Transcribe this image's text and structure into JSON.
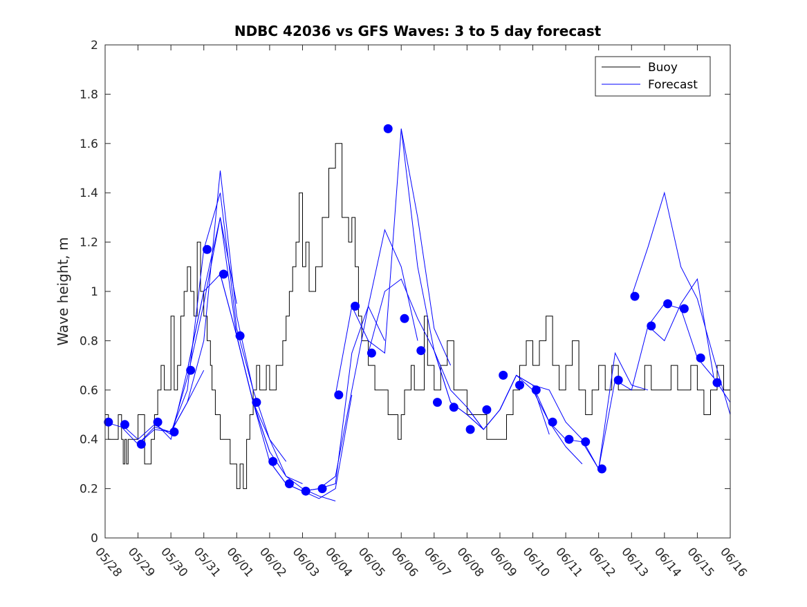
{
  "chart_data": {
    "type": "line",
    "title": "NDBC 42036 vs GFS Waves: 3 to 5 day forecast",
    "xlabel": "",
    "ylabel": "Wave height, m",
    "ylim": [
      0,
      2
    ],
    "yticks": [
      0,
      0.2,
      0.4,
      0.6,
      0.8,
      1,
      1.2,
      1.4,
      1.6,
      1.8,
      2
    ],
    "ytick_labels": [
      "0",
      "0.2",
      "0.4",
      "0.6",
      "0.8",
      "1",
      "1.2",
      "1.4",
      "1.6",
      "1.8",
      "2"
    ],
    "xlim": [
      0,
      19
    ],
    "xticks": [
      0,
      1,
      2,
      3,
      4,
      5,
      6,
      7,
      8,
      9,
      10,
      11,
      12,
      13,
      14,
      15,
      16,
      17,
      18,
      19
    ],
    "xtick_labels": [
      "05/28",
      "05/29",
      "05/30",
      "05/31",
      "06/01",
      "06/02",
      "06/03",
      "06/04",
      "06/05",
      "06/06",
      "06/07",
      "06/08",
      "06/09",
      "06/10",
      "06/11",
      "06/12",
      "06/13",
      "06/14",
      "06/15",
      "06/16"
    ],
    "grid": false,
    "legend_position": "top-right",
    "legend": [
      {
        "label": "Buoy",
        "color": "#000000"
      },
      {
        "label": "Forecast",
        "color": "#0000ff"
      }
    ],
    "colors": {
      "buoy": "#000000",
      "forecast": "#0000ff",
      "marker": "#0000ff"
    },
    "series": [
      {
        "name": "Buoy",
        "color": "#000000",
        "x": [
          0.0,
          0.1,
          0.3,
          0.4,
          0.5,
          0.55,
          0.6,
          0.65,
          0.7,
          0.8,
          1.0,
          1.2,
          1.3,
          1.4,
          1.5,
          1.6,
          1.7,
          1.8,
          1.9,
          2.0,
          2.1,
          2.2,
          2.3,
          2.4,
          2.5,
          2.6,
          2.7,
          2.8,
          2.9,
          3.0,
          3.1,
          3.2,
          3.25,
          3.3,
          3.35,
          3.4,
          3.5,
          3.6,
          3.7,
          3.8,
          3.9,
          4.0,
          4.1,
          4.2,
          4.3,
          4.4,
          4.5,
          4.6,
          4.7,
          4.8,
          4.9,
          5.0,
          5.2,
          5.4,
          5.5,
          5.6,
          5.7,
          5.8,
          5.9,
          6.0,
          6.1,
          6.2,
          6.4,
          6.6,
          6.8,
          7.0,
          7.2,
          7.4,
          7.5,
          7.6,
          7.7,
          7.8,
          7.9,
          8.0,
          8.1,
          8.2,
          8.3,
          8.4,
          8.5,
          8.6,
          8.7,
          8.8,
          8.9,
          9.0,
          9.1,
          9.2,
          9.3,
          9.4,
          9.5,
          9.6,
          9.7,
          9.8,
          10.0,
          10.2,
          10.4,
          10.6,
          10.8,
          11.0,
          11.2,
          11.4,
          11.6,
          11.8,
          12.0,
          12.2,
          12.4,
          12.6,
          12.8,
          13.0,
          13.2,
          13.4,
          13.6,
          13.8,
          14.0,
          14.2,
          14.4,
          14.6,
          14.8,
          15.0,
          15.2,
          15.4,
          15.6,
          15.8,
          16.0,
          16.2,
          16.4,
          16.6,
          16.8,
          17.0,
          17.2,
          17.4,
          17.6,
          17.8,
          18.0,
          18.2,
          18.4,
          18.6,
          18.8,
          19.0
        ],
        "values": [
          0.5,
          0.4,
          0.4,
          0.5,
          0.4,
          0.3,
          0.4,
          0.3,
          0.4,
          0.4,
          0.5,
          0.3,
          0.3,
          0.4,
          0.5,
          0.6,
          0.7,
          0.6,
          0.6,
          0.9,
          0.6,
          0.7,
          0.9,
          1.0,
          1.1,
          1.0,
          0.9,
          1.2,
          1.0,
          0.9,
          0.8,
          0.7,
          0.6,
          0.6,
          0.5,
          0.5,
          0.4,
          0.4,
          0.4,
          0.3,
          0.3,
          0.2,
          0.3,
          0.2,
          0.4,
          0.5,
          0.6,
          0.7,
          0.6,
          0.6,
          0.7,
          0.6,
          0.7,
          0.8,
          0.9,
          1.0,
          1.1,
          1.2,
          1.4,
          1.1,
          1.2,
          1.0,
          1.1,
          1.3,
          1.5,
          1.6,
          1.3,
          1.2,
          1.3,
          1.1,
          0.9,
          0.8,
          0.8,
          0.7,
          0.7,
          0.6,
          0.6,
          0.6,
          0.6,
          0.5,
          0.5,
          0.5,
          0.4,
          0.5,
          0.6,
          0.6,
          0.7,
          0.6,
          0.6,
          0.6,
          0.9,
          0.7,
          0.6,
          0.7,
          0.8,
          0.6,
          0.6,
          0.5,
          0.5,
          0.5,
          0.4,
          0.4,
          0.4,
          0.5,
          0.6,
          0.7,
          0.8,
          0.7,
          0.8,
          0.9,
          0.7,
          0.6,
          0.7,
          0.8,
          0.6,
          0.5,
          0.6,
          0.7,
          0.6,
          0.7,
          0.6,
          0.6,
          0.6,
          0.6,
          0.7,
          0.6,
          0.6,
          0.6,
          0.7,
          0.6,
          0.6,
          0.7,
          0.6,
          0.5,
          0.6,
          0.7,
          0.6,
          0.6
        ]
      }
    ],
    "forecast_runs": [
      {
        "name": "",
        "x": [
          0.0,
          0.5,
          1.0,
          1.5,
          2.0,
          2.5,
          3.0
        ],
        "values": [
          0.47,
          0.45,
          0.38,
          0.45,
          0.43,
          0.55,
          0.68
        ]
      },
      {
        "name": "",
        "x": [
          0.5,
          1.0,
          1.5,
          2.0,
          2.5,
          3.0,
          3.5,
          4.0
        ],
        "values": [
          0.46,
          0.4,
          0.46,
          0.42,
          0.65,
          0.95,
          1.3,
          0.95
        ]
      },
      {
        "name": "",
        "x": [
          1.0,
          1.5,
          2.0,
          2.5,
          3.0,
          3.5,
          4.0,
          4.5
        ],
        "values": [
          0.38,
          0.44,
          0.43,
          0.6,
          1.17,
          1.4,
          0.85,
          0.6
        ]
      },
      {
        "name": "",
        "x": [
          1.5,
          2.0,
          2.5,
          3.0,
          3.5,
          4.0,
          4.5,
          5.0
        ],
        "values": [
          0.47,
          0.4,
          0.68,
          1.0,
          1.3,
          0.82,
          0.55,
          0.35
        ]
      },
      {
        "name": "",
        "x": [
          2.0,
          2.5,
          3.0,
          3.5,
          4.0,
          4.5,
          5.0,
          5.5
        ],
        "values": [
          0.43,
          0.55,
          0.8,
          1.49,
          0.9,
          0.6,
          0.4,
          0.31
        ]
      },
      {
        "name": "",
        "x": [
          2.5,
          3.0,
          3.5,
          4.0,
          4.5,
          5.0,
          5.5,
          6.0
        ],
        "values": [
          0.68,
          1.0,
          1.07,
          0.82,
          0.55,
          0.4,
          0.25,
          0.22
        ]
      },
      {
        "name": "",
        "x": [
          3.5,
          4.0,
          4.5,
          5.0,
          5.5,
          6.0,
          6.5,
          7.0
        ],
        "values": [
          1.07,
          0.82,
          0.55,
          0.35,
          0.25,
          0.2,
          0.17,
          0.15
        ]
      },
      {
        "name": "",
        "x": [
          4.0,
          4.5,
          5.0,
          5.5,
          6.0,
          6.5,
          7.0,
          7.5
        ],
        "values": [
          0.82,
          0.55,
          0.31,
          0.22,
          0.19,
          0.16,
          0.2,
          0.58
        ]
      },
      {
        "name": "",
        "x": [
          5.0,
          5.5,
          6.0,
          6.5,
          7.0,
          7.5,
          8.0,
          8.5
        ],
        "values": [
          0.31,
          0.22,
          0.19,
          0.2,
          0.25,
          0.6,
          0.94,
          0.8
        ]
      },
      {
        "name": "",
        "x": [
          6.0,
          6.5,
          7.0,
          7.5,
          8.0,
          8.5,
          9.0,
          9.5
        ],
        "values": [
          0.19,
          0.2,
          0.22,
          0.75,
          0.94,
          1.25,
          1.1,
          0.8
        ]
      },
      {
        "name": "",
        "x": [
          7.0,
          7.5,
          8.0,
          8.5,
          9.0,
          9.5,
          10.0,
          10.5
        ],
        "values": [
          0.58,
          0.94,
          0.8,
          0.75,
          1.66,
          1.3,
          0.85,
          0.7
        ]
      },
      {
        "name": "",
        "x": [
          8.0,
          8.5,
          9.0,
          9.5,
          10.0,
          10.5,
          11.0,
          11.5
        ],
        "values": [
          0.75,
          1.0,
          1.05,
          0.89,
          0.76,
          0.55,
          0.5,
          0.44
        ]
      },
      {
        "name": "",
        "x": [
          9.0,
          9.5,
          10.0,
          10.5,
          11.0,
          11.5,
          12.0,
          12.5
        ],
        "values": [
          1.66,
          1.1,
          0.76,
          0.6,
          0.53,
          0.44,
          0.52,
          0.66
        ]
      },
      {
        "name": "",
        "x": [
          10.0,
          10.5,
          11.0,
          11.5,
          12.0,
          12.5,
          13.0,
          13.5
        ],
        "values": [
          0.76,
          0.55,
          0.5,
          0.44,
          0.52,
          0.66,
          0.62,
          0.42
        ]
      },
      {
        "name": "",
        "x": [
          11.0,
          11.5,
          12.0,
          12.5,
          13.0,
          13.5,
          14.0,
          14.5
        ],
        "values": [
          0.53,
          0.44,
          0.52,
          0.66,
          0.6,
          0.47,
          0.37,
          0.3
        ]
      },
      {
        "name": "",
        "x": [
          12.0,
          12.5,
          13.0,
          13.5,
          14.0,
          14.5,
          15.0
        ],
        "values": [
          0.52,
          0.66,
          0.62,
          0.47,
          0.4,
          0.39,
          0.28
        ]
      },
      {
        "name": "",
        "x": [
          13.0,
          13.5,
          14.0,
          14.5,
          15.0,
          15.5,
          16.0,
          16.5
        ],
        "values": [
          0.62,
          0.6,
          0.47,
          0.4,
          0.28,
          0.75,
          0.62,
          0.6
        ]
      },
      {
        "name": "",
        "x": [
          15.0,
          15.5,
          16.0,
          16.5,
          17.0,
          17.5,
          18.0,
          18.5
        ],
        "values": [
          0.28,
          0.64,
          0.6,
          0.86,
          0.95,
          0.93,
          0.73,
          0.65
        ]
      },
      {
        "name": "",
        "x": [
          16.0,
          16.5,
          17.0,
          17.5,
          18.0,
          18.5,
          19.0
        ],
        "values": [
          0.98,
          1.18,
          1.4,
          1.1,
          0.97,
          0.73,
          0.5
        ]
      },
      {
        "name": "",
        "x": [
          16.5,
          17.0,
          17.5,
          18.0,
          18.5,
          19.0
        ],
        "values": [
          0.86,
          0.8,
          0.95,
          1.05,
          0.65,
          0.55
        ]
      }
    ],
    "markers": {
      "x": [
        0.1,
        0.6,
        1.1,
        1.6,
        2.1,
        2.6,
        3.1,
        3.6,
        4.1,
        4.6,
        5.1,
        5.6,
        6.1,
        6.6,
        7.1,
        7.6,
        8.1,
        8.6,
        9.1,
        9.6,
        10.1,
        10.6,
        11.1,
        11.6,
        12.1,
        12.6,
        13.1,
        13.6,
        14.1,
        14.6,
        15.1,
        15.6,
        16.1,
        16.6,
        17.1,
        17.6,
        18.1,
        18.6
      ],
      "values": [
        0.47,
        0.46,
        0.38,
        0.47,
        0.43,
        0.68,
        1.17,
        1.07,
        0.82,
        0.55,
        0.31,
        0.22,
        0.19,
        0.2,
        0.58,
        0.94,
        0.75,
        1.66,
        0.89,
        0.76,
        0.55,
        0.53,
        0.44,
        0.52,
        0.66,
        0.62,
        0.6,
        0.47,
        0.4,
        0.39,
        0.28,
        0.64,
        0.98,
        0.86,
        0.95,
        0.93,
        0.73,
        0.63
      ]
    }
  }
}
